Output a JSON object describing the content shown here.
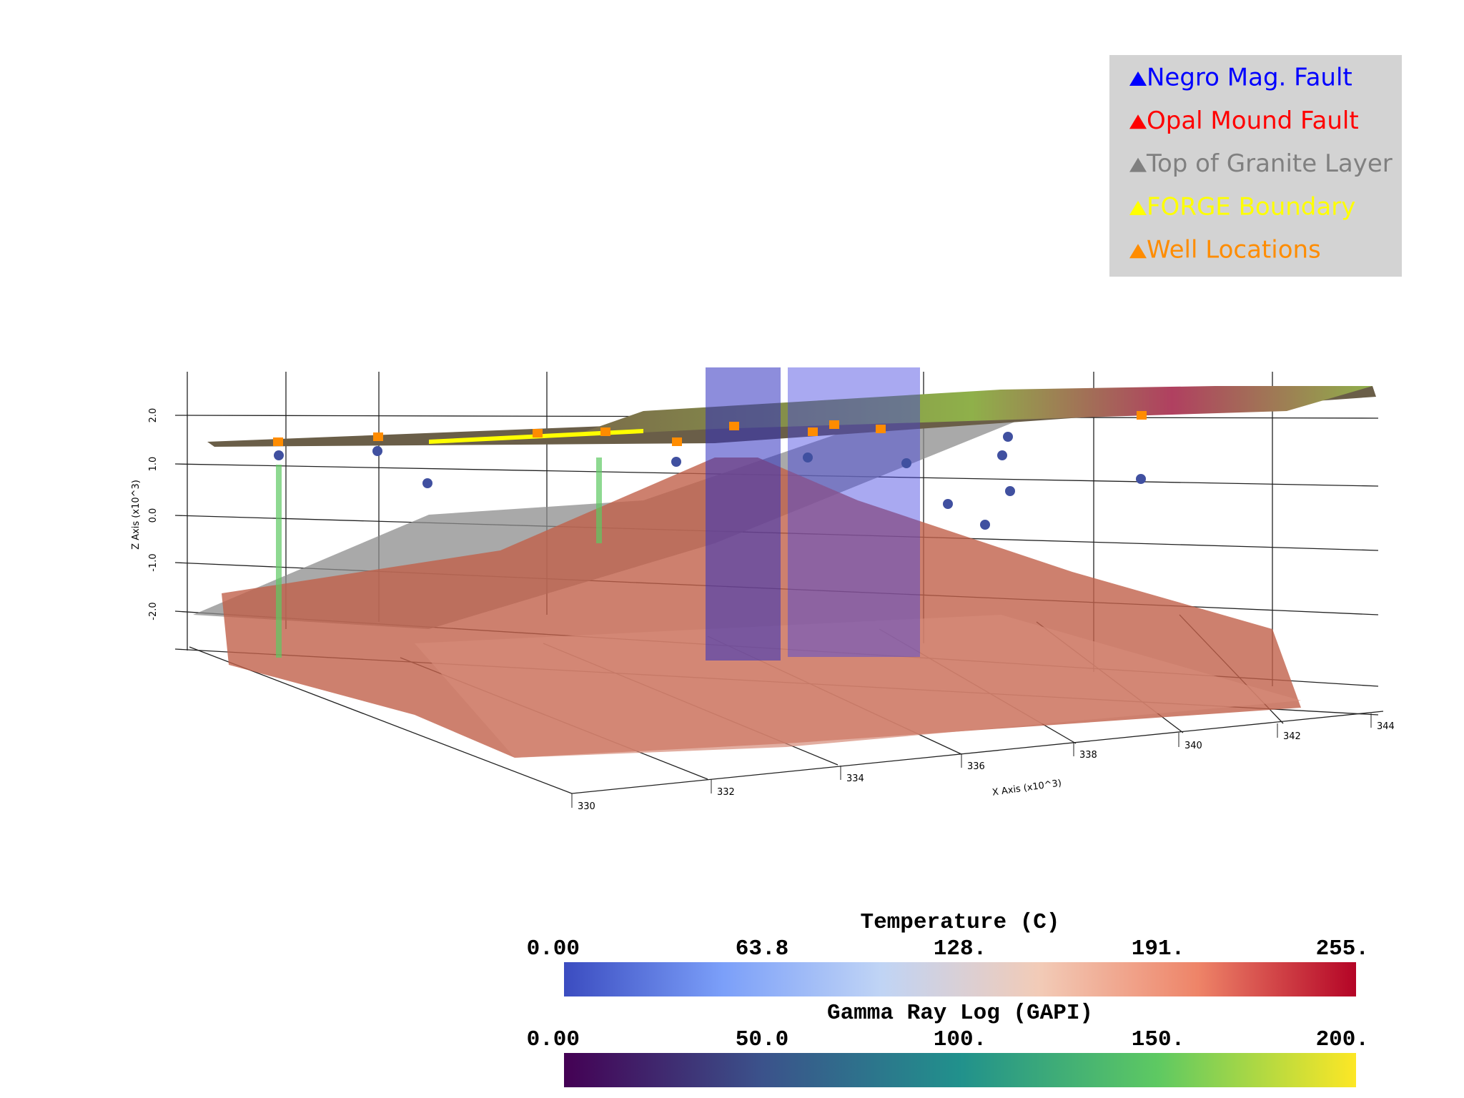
{
  "legend": {
    "items": [
      {
        "label": "Negro Mag. Fault",
        "color": "#0000ff"
      },
      {
        "label": "Opal Mound Fault",
        "color": "#ff0000"
      },
      {
        "label": "Top of Granite Layer",
        "color": "#808080"
      },
      {
        "label": "FORGE Boundary",
        "color": "#ffff00"
      },
      {
        "label": "Well Locations",
        "color": "#ff8c00"
      }
    ]
  },
  "axes": {
    "z_label": "Z Axis (x10^3)",
    "z_ticks": [
      "2.0",
      "1.0",
      "0.0",
      "-1.0",
      "-2.0"
    ],
    "x_label": "X Axis (x10^3)",
    "x_ticks": [
      "330",
      "332",
      "334",
      "336",
      "338",
      "340",
      "342",
      "344"
    ]
  },
  "colorbars": [
    {
      "title": "Temperature (C)",
      "ticks": [
        "0.00",
        "63.8",
        "128.",
        "191.",
        "255."
      ],
      "colors": [
        "#3b4cc0",
        "#7b9ff9",
        "#c0d4f5",
        "#f2cbb7",
        "#ee8468",
        "#b40426"
      ]
    },
    {
      "title": "Gamma Ray Log (GAPI)",
      "ticks": [
        "0.00",
        "50.0",
        "100.",
        "150.",
        "200."
      ],
      "colors": [
        "#440154",
        "#3b528b",
        "#21918c",
        "#5ec962",
        "#fde725"
      ]
    }
  ]
}
